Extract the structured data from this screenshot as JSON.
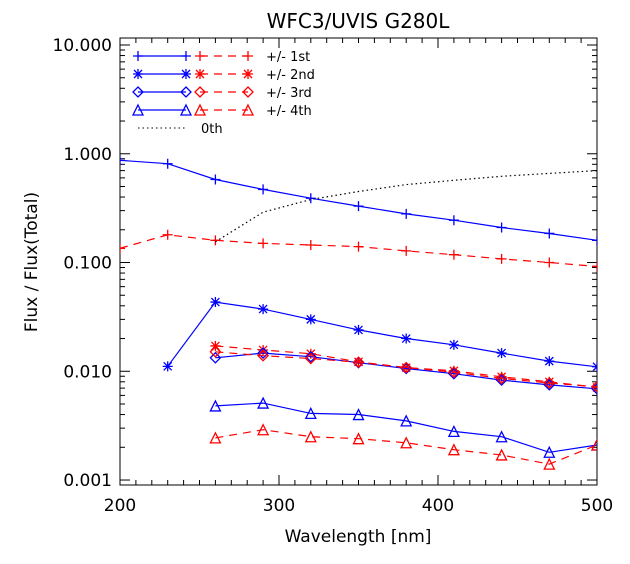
{
  "chart_data": {
    "type": "line",
    "title": "WFC3/UVIS G280L",
    "xlabel": "Wavelength [nm]",
    "ylabel": "Flux / Flux(Total)",
    "xlim": [
      200,
      500
    ],
    "ylim": [
      0.0009,
      11.6
    ],
    "yscale": "log",
    "x_ticks": [
      "200",
      "300",
      "400",
      "500"
    ],
    "y_ticks": [
      "0.001",
      "0.010",
      "0.100",
      "1.000",
      "10.000"
    ],
    "grid": false,
    "legend_placement": "top-left",
    "colors": {
      "positive": "#0000ff",
      "negative": "#ff0000",
      "zeroth": "#000000"
    },
    "legend": [
      {
        "label": "+/- 1st",
        "marker": "plus"
      },
      {
        "label": "+/- 2nd",
        "marker": "asterisk"
      },
      {
        "label": "+/- 3rd",
        "marker": "diamond"
      },
      {
        "label": "+/- 4th",
        "marker": "triangle"
      },
      {
        "label": "0th",
        "marker": "none"
      }
    ],
    "series": [
      {
        "order": "+1st",
        "color": "#0000ff",
        "dash": false,
        "marker": "plus",
        "x": [
          200,
          230,
          260,
          290,
          320,
          350,
          380,
          410,
          440,
          470,
          500
        ],
        "y": [
          0.87,
          0.81,
          0.58,
          0.47,
          0.39,
          0.33,
          0.28,
          0.245,
          0.21,
          0.185,
          0.16
        ]
      },
      {
        "order": "-1st",
        "color": "#ff0000",
        "dash": true,
        "marker": "plus",
        "x": [
          200,
          230,
          260,
          290,
          320,
          350,
          380,
          410,
          440,
          470,
          500
        ],
        "y": [
          0.135,
          0.18,
          0.16,
          0.15,
          0.145,
          0.14,
          0.128,
          0.118,
          0.108,
          0.1,
          0.092
        ]
      },
      {
        "order": "+2nd",
        "color": "#0000ff",
        "dash": false,
        "marker": "asterisk",
        "x": [
          230,
          260,
          290,
          320,
          350,
          380,
          410,
          440,
          470,
          500
        ],
        "y": [
          0.0111,
          0.0433,
          0.0373,
          0.03,
          0.024,
          0.02,
          0.0175,
          0.0147,
          0.0124,
          0.011
        ]
      },
      {
        "order": "-2nd",
        "color": "#ff0000",
        "dash": true,
        "marker": "asterisk",
        "x": [
          260,
          290,
          320,
          350,
          380,
          410,
          440,
          470,
          500
        ],
        "y": [
          0.0171,
          0.0157,
          0.0145,
          0.0122,
          0.0108,
          0.0101,
          0.0089,
          0.008,
          0.0071
        ]
      },
      {
        "order": "+3rd",
        "color": "#0000ff",
        "dash": false,
        "marker": "diamond",
        "x": [
          260,
          290,
          320,
          350,
          380,
          410,
          440,
          470,
          500
        ],
        "y": [
          0.0133,
          0.0147,
          0.0136,
          0.012,
          0.0106,
          0.0095,
          0.0083,
          0.0075,
          0.0069
        ]
      },
      {
        "order": "-3rd",
        "color": "#ff0000",
        "dash": true,
        "marker": "diamond",
        "x": [
          260,
          290,
          320,
          350,
          380,
          410,
          440,
          470,
          500
        ],
        "y": [
          0.0151,
          0.0139,
          0.0131,
          0.0121,
          0.0108,
          0.0098,
          0.0086,
          0.0078,
          0.0072
        ]
      },
      {
        "order": "+4th",
        "color": "#0000ff",
        "dash": false,
        "marker": "triangle",
        "x": [
          260,
          290,
          320,
          350,
          380,
          410,
          440,
          470,
          500
        ],
        "y": [
          0.0048,
          0.0051,
          0.0041,
          0.004,
          0.0035,
          0.0028,
          0.0025,
          0.0018,
          0.0021
        ]
      },
      {
        "order": "-4th",
        "color": "#ff0000",
        "dash": true,
        "marker": "triangle",
        "x": [
          260,
          290,
          320,
          350,
          380,
          410,
          440,
          470,
          500
        ],
        "y": [
          0.00244,
          0.0029,
          0.0025,
          0.0024,
          0.0022,
          0.0019,
          0.0017,
          0.0014,
          0.0021
        ]
      },
      {
        "order": "0th",
        "color": "#000000",
        "dash": "dotted",
        "marker": "none",
        "x": [
          260,
          290,
          320,
          350,
          380,
          410,
          440,
          470,
          500
        ],
        "y": [
          0.155,
          0.29,
          0.38,
          0.45,
          0.52,
          0.57,
          0.62,
          0.66,
          0.7
        ]
      }
    ]
  }
}
